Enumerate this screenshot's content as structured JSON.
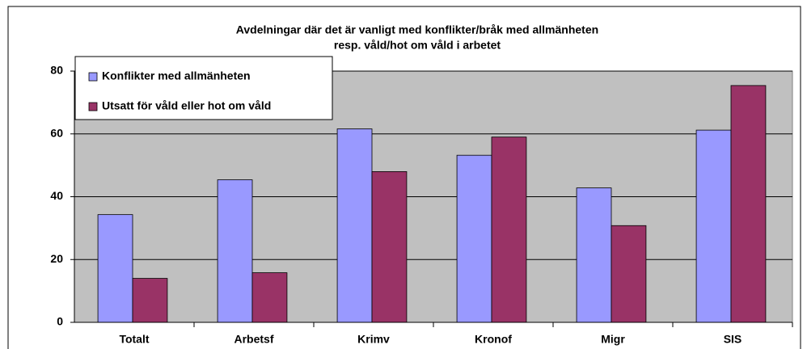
{
  "chart_data": {
    "type": "bar",
    "title": [
      "Avdelningar där det är vanligt med konflikter/bråk med allmänheten",
      "resp. våld/hot om våld i arbetet"
    ],
    "categories": [
      "Totalt",
      "Arbetsf",
      "Krimv",
      "Kronof",
      "Migr",
      "SIS"
    ],
    "series": [
      {
        "name": "Konflikter med allmänheten",
        "color": "#9999ff",
        "values": [
          34.3,
          45.4,
          61.6,
          53.2,
          42.8,
          61.2
        ]
      },
      {
        "name": "Utsatt för våld eller hot om våld",
        "color": "#993366",
        "values": [
          14,
          15.8,
          48,
          59,
          30.8,
          75.4
        ]
      }
    ],
    "ylim": [
      0,
      80
    ],
    "yticks": [
      0,
      20,
      40,
      60,
      80
    ],
    "grid": true,
    "legend": "top-left"
  }
}
